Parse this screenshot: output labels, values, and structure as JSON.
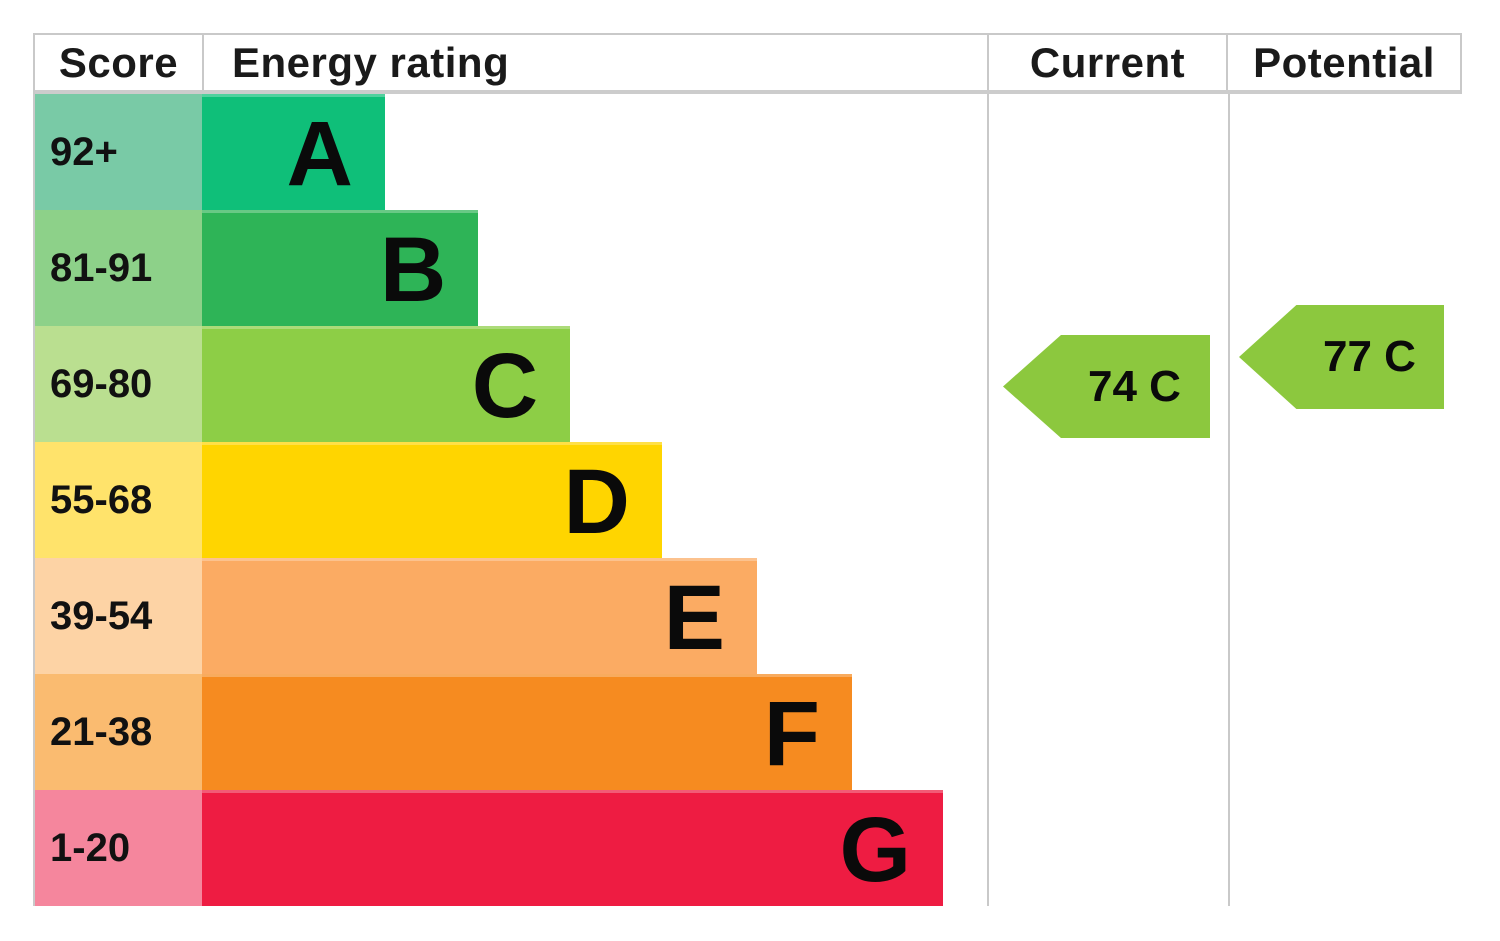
{
  "header": {
    "score": "Score",
    "energy_rating": "Energy rating",
    "current": "Current",
    "potential": "Potential"
  },
  "colors": {
    "border_gray": "#c9c9c9",
    "arrow_green": "#8cc83e",
    "text_black": "#0a0a0a"
  },
  "chart_data": {
    "type": "bar",
    "title": "EPC energy efficiency rating chart",
    "orientation": "horizontal",
    "columns": [
      "Score",
      "Energy rating",
      "Current",
      "Potential"
    ],
    "bands": [
      {
        "letter": "A",
        "score": "92+",
        "color": "#0fbf79",
        "score_color": "#79caa6",
        "width_pct": 23.3
      },
      {
        "letter": "B",
        "score": "81-91",
        "color": "#2eb457",
        "score_color": "#8dd189",
        "width_pct": 35.2
      },
      {
        "letter": "C",
        "score": "69-80",
        "color": "#8dce46",
        "score_color": "#badf90",
        "width_pct": 46.9
      },
      {
        "letter": "D",
        "score": "55-68",
        "color": "#ffd500",
        "score_color": "#ffe36b",
        "width_pct": 58.6
      },
      {
        "letter": "E",
        "score": "39-54",
        "color": "#fbab63",
        "score_color": "#fdd3a5",
        "width_pct": 70.7
      },
      {
        "letter": "F",
        "score": "21-38",
        "color": "#f68b20",
        "score_color": "#fabb70",
        "width_pct": 82.8
      },
      {
        "letter": "G",
        "score": "1-20",
        "color": "#ee1c42",
        "score_color": "#f5869d",
        "width_pct": 94.4
      }
    ],
    "current": {
      "value": 74,
      "band": "C",
      "label": "74 C",
      "color": "#8cc83e"
    },
    "potential": {
      "value": 77,
      "band": "C",
      "label": "77 C",
      "color": "#8cc83e"
    }
  }
}
